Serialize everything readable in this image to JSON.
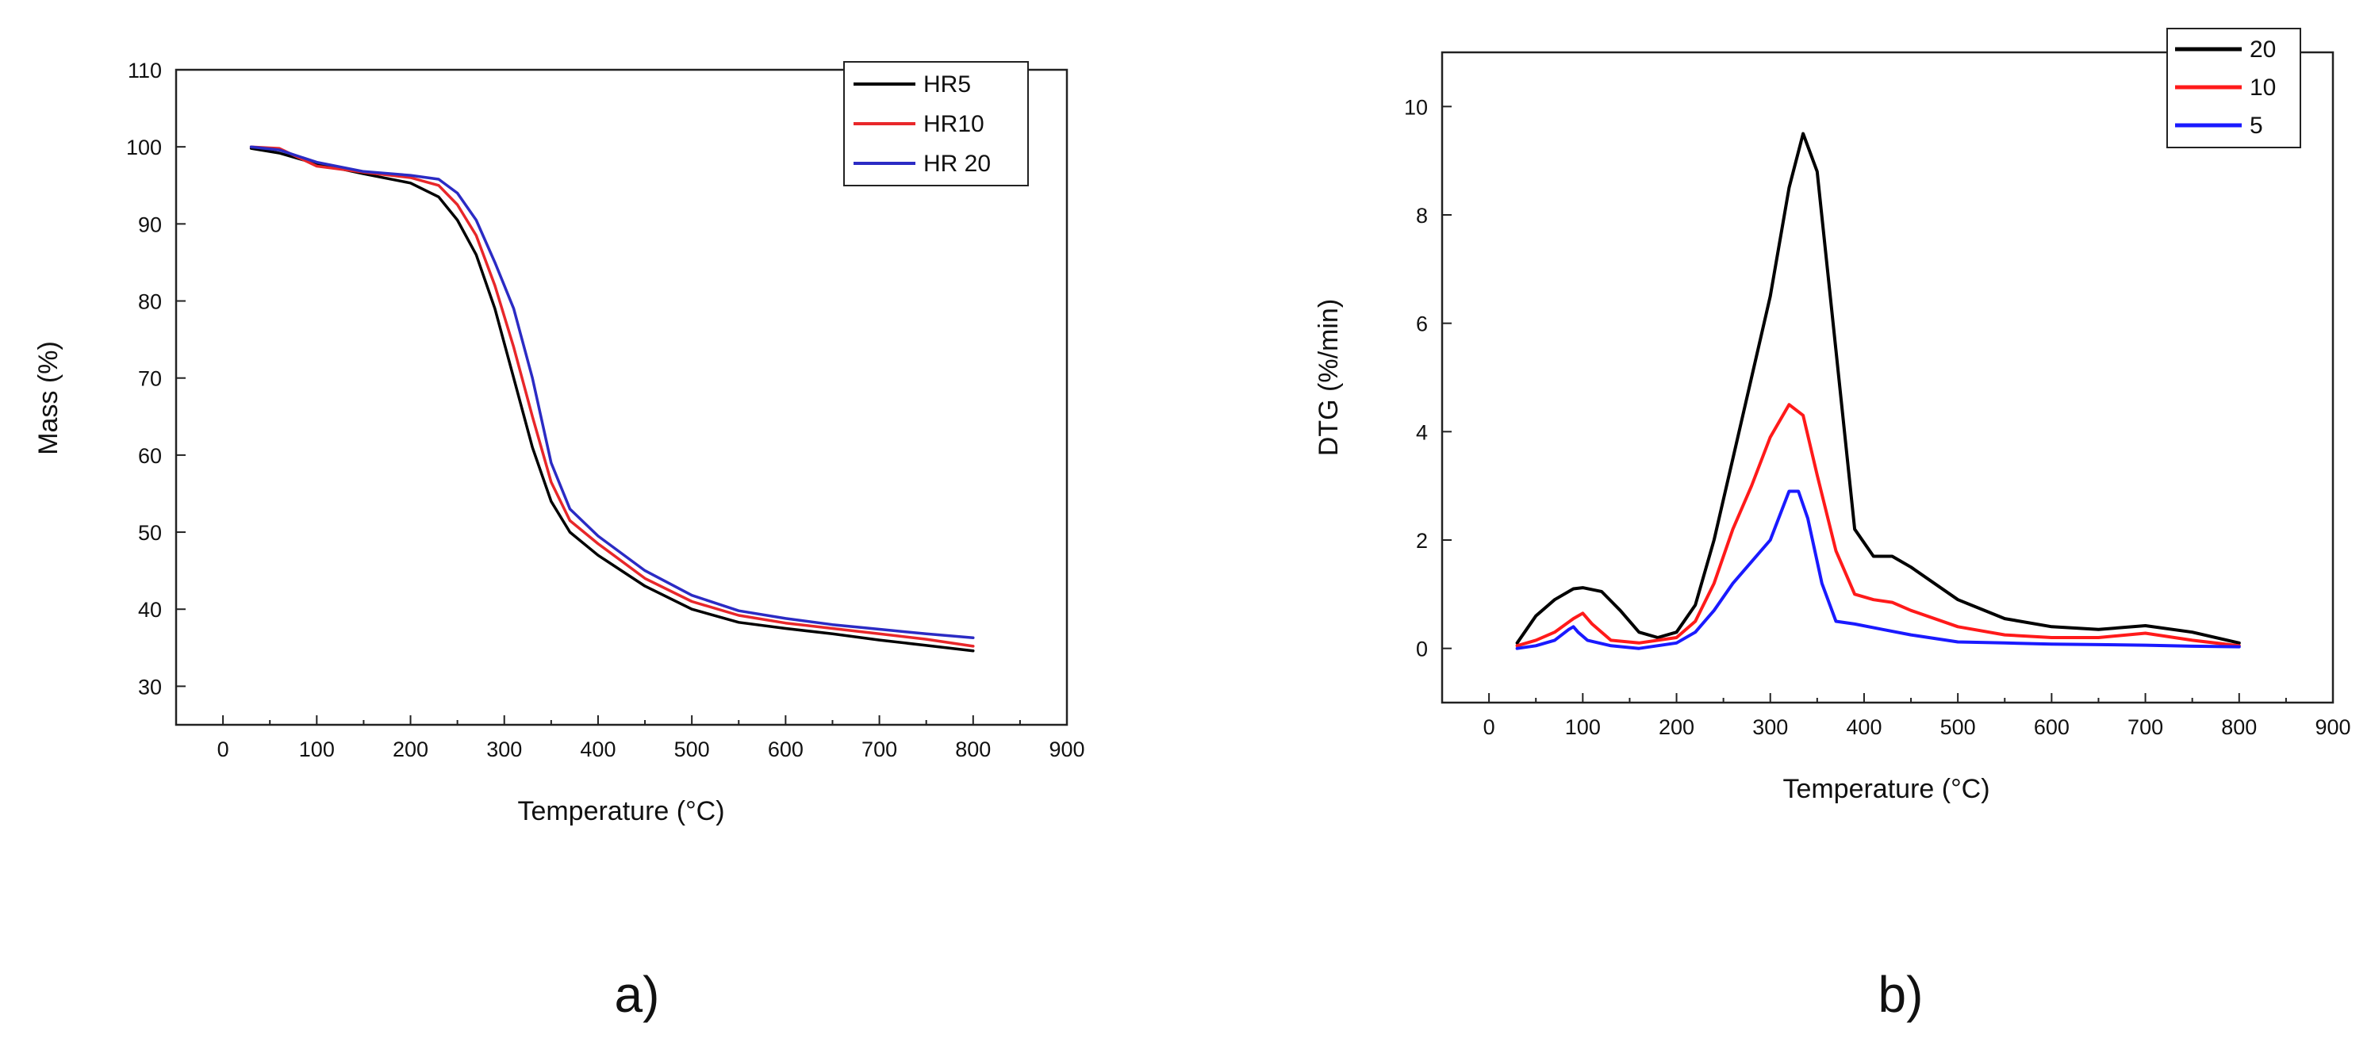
{
  "chart_data": [
    {
      "type": "line",
      "panel_label": "a)",
      "title": "",
      "xlabel": "Temperature (°C)",
      "ylabel": "Mass (%)",
      "xlim": [
        -50,
        900
      ],
      "ylim": [
        25,
        110
      ],
      "xticks": [
        0,
        100,
        200,
        300,
        400,
        500,
        600,
        700,
        800,
        900
      ],
      "yticks": [
        30,
        40,
        50,
        60,
        70,
        80,
        90,
        100,
        110
      ],
      "grid": false,
      "legend_position": "top-right",
      "series": [
        {
          "name": "HR5",
          "color": "#000000",
          "x": [
            30,
            60,
            100,
            150,
            200,
            230,
            250,
            270,
            290,
            310,
            330,
            350,
            370,
            400,
            450,
            500,
            550,
            600,
            650,
            700,
            750,
            800
          ],
          "values": [
            99.8,
            99.2,
            97.8,
            96.5,
            95.3,
            93.5,
            90.5,
            86,
            79,
            70,
            61,
            54,
            50,
            47,
            43,
            40,
            38.3,
            37.5,
            36.8,
            36,
            35.3,
            34.6
          ]
        },
        {
          "name": "HR10",
          "color": "#e8272a",
          "x": [
            30,
            60,
            100,
            150,
            200,
            230,
            250,
            270,
            290,
            310,
            330,
            350,
            370,
            400,
            450,
            500,
            550,
            600,
            650,
            700,
            750,
            800
          ],
          "values": [
            100,
            99.8,
            97.5,
            96.7,
            96,
            95,
            92.5,
            88.5,
            82,
            74,
            65,
            56.5,
            51.5,
            48.5,
            44,
            41,
            39.2,
            38.2,
            37.5,
            36.8,
            36.1,
            35.2
          ]
        },
        {
          "name": "HR 20",
          "color": "#2b2bc4",
          "x": [
            30,
            60,
            100,
            150,
            200,
            230,
            250,
            270,
            290,
            310,
            330,
            350,
            370,
            400,
            450,
            500,
            550,
            600,
            650,
            700,
            750,
            800
          ],
          "values": [
            100,
            99.6,
            98,
            96.8,
            96.3,
            95.8,
            94,
            90.5,
            85,
            79,
            70,
            59,
            53,
            49.5,
            45,
            41.8,
            39.8,
            38.8,
            38,
            37.4,
            36.8,
            36.3
          ]
        }
      ]
    },
    {
      "type": "line",
      "panel_label": "b)",
      "title": "",
      "xlabel": "Temperature (°C)",
      "ylabel": "DTG (%/min)",
      "xlim": [
        -50,
        900
      ],
      "ylim": [
        -1,
        11
      ],
      "xticks": [
        0,
        100,
        200,
        300,
        400,
        500,
        600,
        700,
        800,
        900
      ],
      "yticks": [
        0,
        2,
        4,
        6,
        8,
        10
      ],
      "grid": false,
      "legend_position": "top-right",
      "series": [
        {
          "name": "20",
          "color": "#000000",
          "x": [
            30,
            50,
            70,
            90,
            100,
            120,
            140,
            160,
            180,
            200,
            220,
            240,
            260,
            280,
            300,
            320,
            335,
            350,
            370,
            390,
            410,
            430,
            450,
            500,
            550,
            600,
            650,
            700,
            750,
            800
          ],
          "values": [
            0.1,
            0.6,
            0.9,
            1.1,
            1.12,
            1.05,
            0.7,
            0.3,
            0.2,
            0.3,
            0.8,
            2.0,
            3.5,
            5.0,
            6.5,
            8.5,
            9.5,
            8.8,
            5.5,
            2.2,
            1.7,
            1.7,
            1.5,
            0.9,
            0.55,
            0.4,
            0.35,
            0.42,
            0.3,
            0.1
          ]
        },
        {
          "name": "10",
          "color": "#ff1a1a",
          "x": [
            30,
            50,
            70,
            90,
            100,
            110,
            130,
            160,
            200,
            220,
            240,
            260,
            280,
            300,
            320,
            335,
            350,
            370,
            390,
            410,
            430,
            450,
            500,
            550,
            600,
            650,
            700,
            750,
            800
          ],
          "values": [
            0.05,
            0.15,
            0.3,
            0.55,
            0.65,
            0.45,
            0.15,
            0.1,
            0.2,
            0.5,
            1.2,
            2.2,
            3.0,
            3.9,
            4.5,
            4.3,
            3.2,
            1.8,
            1.0,
            0.9,
            0.85,
            0.7,
            0.4,
            0.25,
            0.2,
            0.2,
            0.28,
            0.15,
            0.05
          ]
        },
        {
          "name": "5",
          "color": "#1a1aff",
          "x": [
            30,
            50,
            70,
            85,
            90,
            95,
            105,
            130,
            160,
            200,
            220,
            240,
            260,
            280,
            300,
            320,
            330,
            340,
            355,
            370,
            390,
            420,
            450,
            500,
            550,
            600,
            650,
            700,
            750,
            800
          ],
          "values": [
            0,
            0.05,
            0.15,
            0.35,
            0.4,
            0.3,
            0.15,
            0.05,
            0.0,
            0.1,
            0.3,
            0.7,
            1.2,
            1.6,
            2.0,
            2.9,
            2.9,
            2.4,
            1.2,
            0.5,
            0.45,
            0.35,
            0.25,
            0.12,
            0.1,
            0.08,
            0.07,
            0.06,
            0.04,
            0.03
          ]
        }
      ]
    }
  ]
}
